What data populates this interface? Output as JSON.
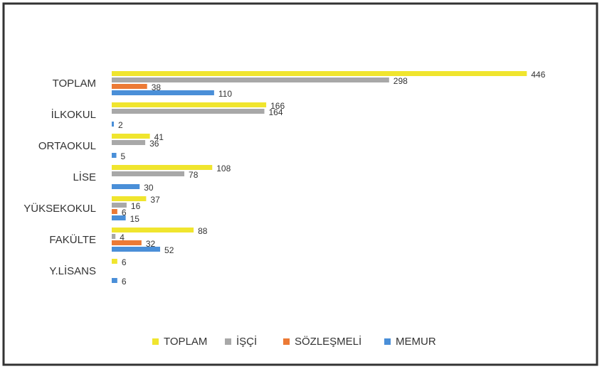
{
  "chart_data": {
    "type": "bar",
    "orientation": "horizontal",
    "categories": [
      "TOPLAM",
      "İLKOKUL",
      "ORTAOKUL",
      "LİSE",
      "YÜKSEKOKUL",
      "FAKÜLTE",
      "Y.LİSANS"
    ],
    "series": [
      {
        "name": "TOPLAM",
        "color": "#f0e52e",
        "values": [
          446,
          166,
          41,
          108,
          37,
          88,
          6
        ]
      },
      {
        "name": "İŞÇİ",
        "color": "#a8a8a8",
        "values": [
          298,
          164,
          36,
          78,
          16,
          4,
          null
        ]
      },
      {
        "name": "SÖZLEŞMELİ",
        "color": "#ec7a35",
        "values": [
          38,
          null,
          null,
          null,
          6,
          32,
          null
        ]
      },
      {
        "name": "MEMUR",
        "color": "#4a8fd8",
        "values": [
          110,
          2,
          5,
          30,
          15,
          52,
          6
        ]
      }
    ],
    "xlim": [
      0,
      500
    ]
  }
}
